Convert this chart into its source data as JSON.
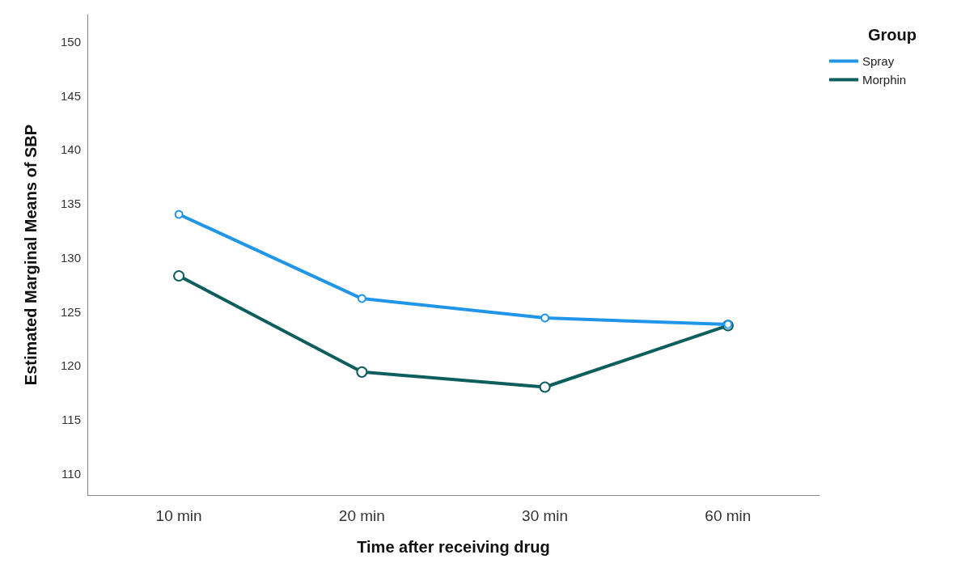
{
  "chart_data": {
    "type": "line",
    "xlabel": "Time after receiving drug",
    "ylabel": "Estimated Marginal Means of SBP",
    "legend_title": "Group",
    "categories": [
      "10 min",
      "20 min",
      "30 min",
      "60 min"
    ],
    "series": [
      {
        "name": "Spray",
        "color": "#2196e8",
        "values": [
          134.0,
          126.2,
          124.4,
          123.8
        ]
      },
      {
        "name": "Morphin",
        "color": "#0d5e5c",
        "values": [
          128.3,
          119.4,
          118.0,
          123.7
        ]
      }
    ],
    "ylim": [
      108,
      152.5
    ],
    "yticks": [
      110,
      115,
      120,
      125,
      130,
      135,
      140,
      145,
      150
    ],
    "grid": false,
    "legend": "top right",
    "marker": "circle",
    "line_style": "solid"
  }
}
